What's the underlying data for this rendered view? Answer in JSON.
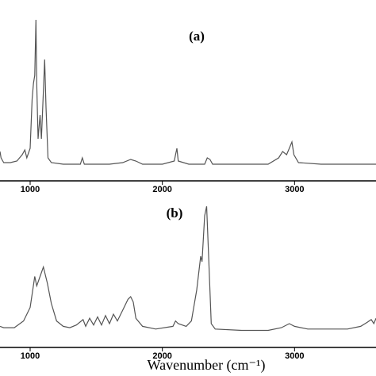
{
  "chart_data": [
    {
      "type": "line",
      "label": "(a)",
      "color": "#555555",
      "x": [
        772,
        780,
        800,
        850,
        900,
        940,
        960,
        975,
        1000,
        1015,
        1025,
        1035,
        1044,
        1050,
        1060,
        1075,
        1085,
        1100,
        1110,
        1120,
        1135,
        1160,
        1250,
        1380,
        1395,
        1410,
        1600,
        1700,
        1760,
        1800,
        1850,
        2000,
        2090,
        2100,
        2110,
        2120,
        2200,
        2320,
        2340,
        2360,
        2380,
        2600,
        2800,
        2880,
        2910,
        2940,
        2960,
        2980,
        2995,
        3030,
        3200,
        3616
      ],
      "values": [
        12,
        8,
        5,
        5,
        6,
        10,
        13,
        8,
        14,
        45,
        55,
        60,
        95,
        55,
        20,
        35,
        20,
        50,
        70,
        40,
        8,
        5,
        4,
        4,
        8,
        4,
        4,
        5,
        7,
        6,
        4,
        4,
        6,
        10,
        14,
        6,
        4,
        4,
        8,
        7,
        4,
        4,
        4,
        8,
        12,
        10,
        14,
        18,
        10,
        5,
        4,
        4
      ],
      "xlim": [
        772,
        3616
      ],
      "ylim": [
        0,
        100
      ],
      "xticks": [
        1000,
        2000,
        3000
      ]
    },
    {
      "type": "line",
      "label": "(b)",
      "color": "#555555",
      "xlabel": "Wavenumber (cm⁻¹)",
      "x": [
        772,
        800,
        880,
        950,
        1000,
        1020,
        1035,
        1050,
        1075,
        1100,
        1130,
        1160,
        1200,
        1250,
        1300,
        1350,
        1400,
        1420,
        1450,
        1480,
        1510,
        1540,
        1570,
        1600,
        1630,
        1660,
        1700,
        1740,
        1760,
        1780,
        1800,
        1850,
        1950,
        2080,
        2100,
        2120,
        2180,
        2220,
        2260,
        2290,
        2300,
        2320,
        2335,
        2350,
        2370,
        2400,
        2600,
        2800,
        2900,
        2960,
        3000,
        3100,
        3400,
        3500,
        3550,
        3580,
        3600,
        3616
      ],
      "values": [
        8,
        7,
        7,
        12,
        22,
        35,
        45,
        38,
        45,
        52,
        40,
        25,
        12,
        8,
        7,
        9,
        13,
        8,
        14,
        9,
        15,
        9,
        16,
        10,
        17,
        12,
        20,
        28,
        30,
        26,
        14,
        8,
        6,
        8,
        12,
        10,
        8,
        12,
        35,
        60,
        56,
        90,
        97,
        60,
        10,
        6,
        5,
        5,
        7,
        10,
        8,
        6,
        6,
        8,
        11,
        13,
        10,
        14
      ],
      "xlim": [
        772,
        3616
      ],
      "ylim": [
        0,
        100
      ],
      "xticks": [
        1000,
        2000,
        3000
      ]
    }
  ]
}
